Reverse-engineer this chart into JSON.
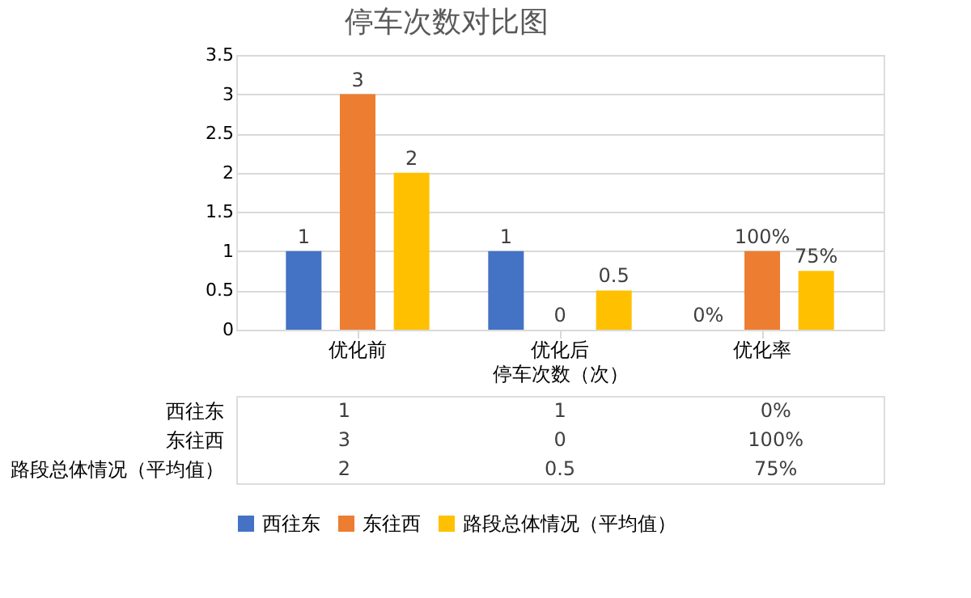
{
  "chart_data": {
    "type": "bar",
    "title": "停车次数对比图",
    "xlabel": "停车次数（次）",
    "categories": [
      "优化前",
      "优化后",
      "优化率"
    ],
    "series": [
      {
        "name": "西往东",
        "color": "#4472c4",
        "values": [
          1,
          1,
          0
        ],
        "value_labels": [
          "1",
          "1",
          "0%"
        ]
      },
      {
        "name": "东往西",
        "color": "#ed7d31",
        "values": [
          3,
          0,
          1
        ],
        "value_labels": [
          "3",
          "0",
          "100%"
        ]
      },
      {
        "name": "路段总体情况（平均值）",
        "color": "#ffc000",
        "values": [
          2,
          0.5,
          0.75
        ],
        "value_labels": [
          "2",
          "0.5",
          "75%"
        ]
      }
    ],
    "ylim": [
      0,
      3.5
    ],
    "yticks": [
      0,
      0.5,
      1,
      1.5,
      2,
      2.5,
      3,
      3.5
    ],
    "grid": "y",
    "legend": "bottom"
  }
}
